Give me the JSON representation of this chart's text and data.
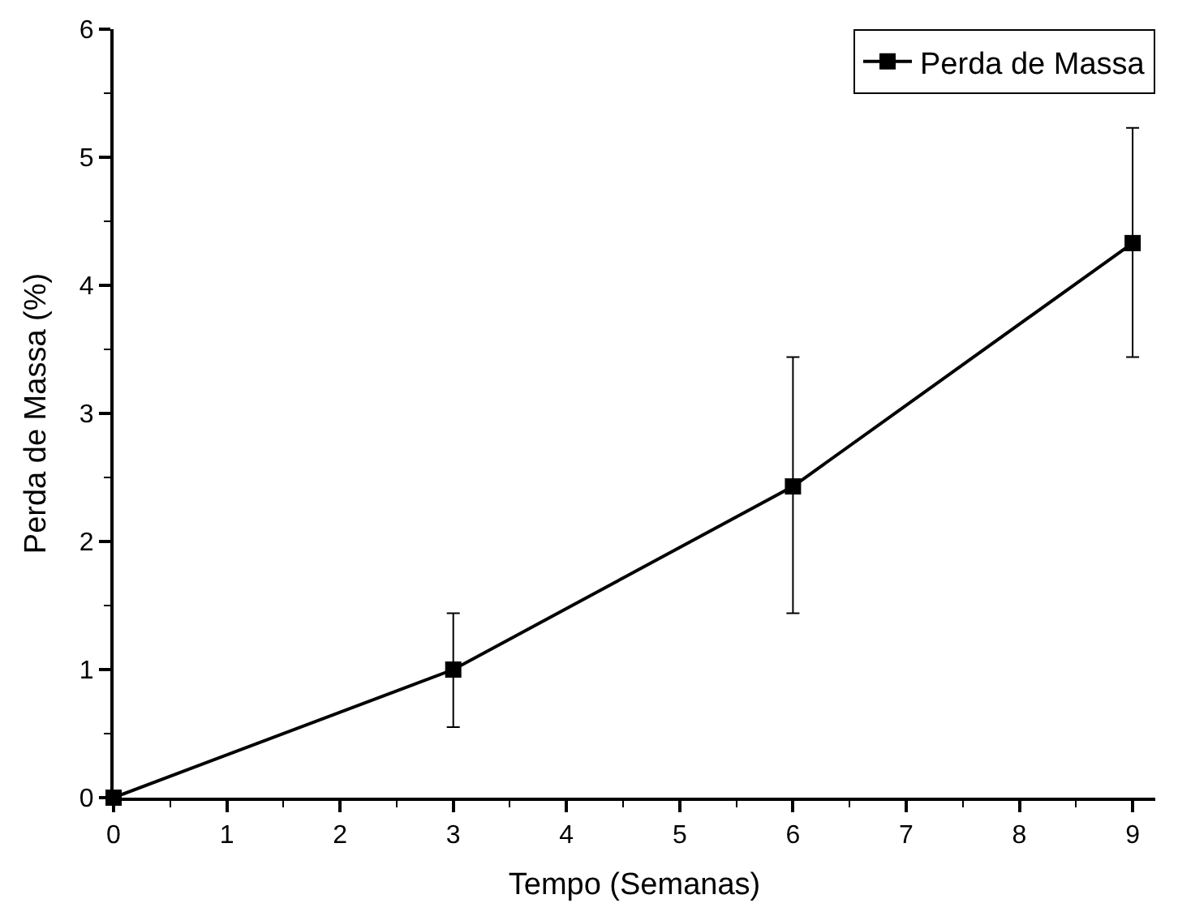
{
  "chart_data": {
    "type": "line",
    "xlabel": "Tempo (Semanas)",
    "ylabel": "Perda de Massa (%)",
    "x": [
      0,
      3,
      6,
      9
    ],
    "series": [
      {
        "name": "Perda de Massa",
        "color": "#000000",
        "values": [
          0,
          1.0,
          2.43,
          4.33
        ],
        "errors": [
          null,
          [
            0.55,
            1.44
          ],
          [
            1.44,
            3.44
          ],
          [
            3.44,
            5.23
          ]
        ]
      }
    ],
    "xlim": [
      0,
      9.2
    ],
    "xticks": [
      0,
      1,
      2,
      3,
      4,
      5,
      6,
      7,
      8,
      9
    ],
    "ylim": [
      0,
      6
    ],
    "yticks": [
      0,
      1,
      2,
      3,
      4,
      5,
      6
    ],
    "marker": "square",
    "line_style": "solid",
    "legend": "top right"
  }
}
